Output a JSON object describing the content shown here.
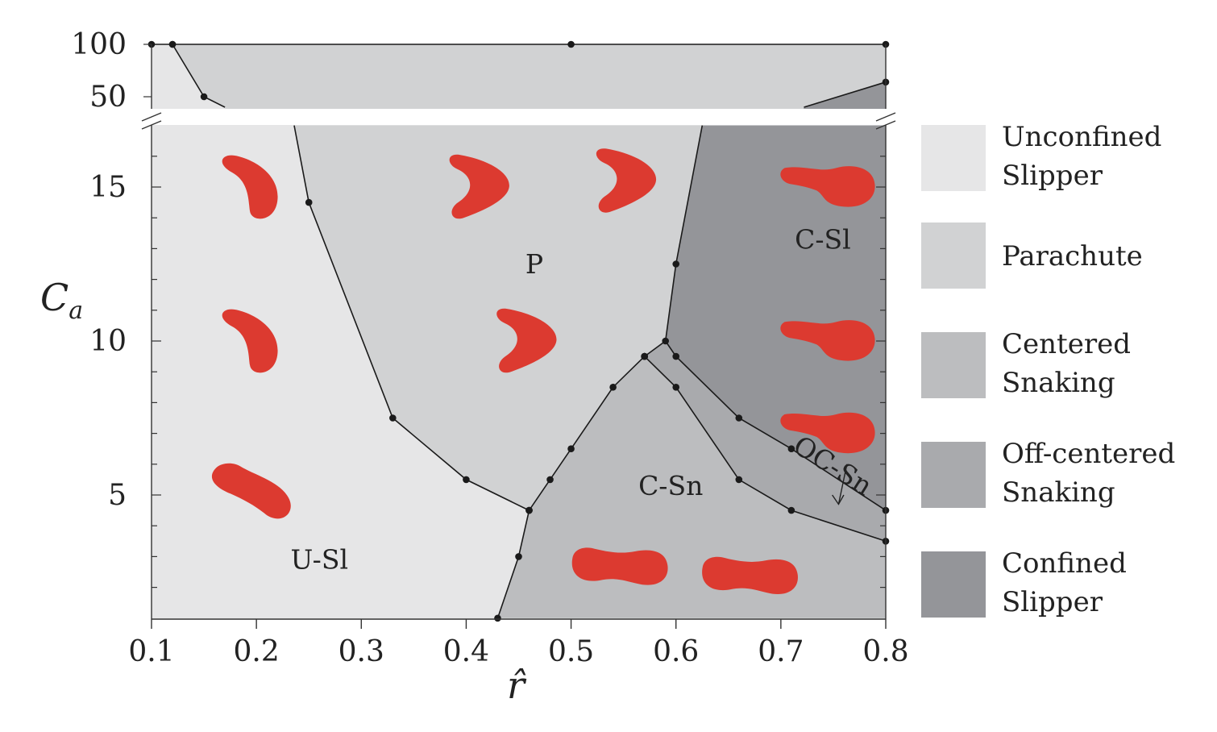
{
  "chart_data": {
    "type": "phase-diagram",
    "xlabel": "r̂",
    "ylabel": "C",
    "ylabel_subscript": "a",
    "xlim": [
      0.1,
      0.8
    ],
    "ylim_lower": [
      1,
      17
    ],
    "ylim_upper": [
      40,
      100
    ],
    "y_axis_broken": true,
    "x_ticks": [
      "0.1",
      "0.2",
      "0.3",
      "0.4",
      "0.5",
      "0.6",
      "0.7",
      "0.8"
    ],
    "y_ticks_lower": [
      "5",
      "10",
      "15"
    ],
    "y_ticks_upper": [
      "50",
      "100"
    ],
    "colors": {
      "U-Sl": "#e6e6e7",
      "P": "#d1d2d3",
      "C-Sn": "#bcbdbf",
      "OC-Sn": "#a9aaad",
      "C-Sl": "#949599",
      "cell": "#dc3a30",
      "line": "#1a1a1a"
    },
    "region_labels": [
      {
        "text": "U-Sl",
        "x": 0.26,
        "y": 2.6
      },
      {
        "text": "P",
        "x": 0.465,
        "y": 12.2
      },
      {
        "text": "C-Sn",
        "x": 0.595,
        "y": 5.0
      },
      {
        "text": "C-Sl",
        "x": 0.74,
        "y": 13.0
      },
      {
        "text": "OC-Sn",
        "x": 0.745,
        "y": 5.7,
        "rotate": 32
      }
    ],
    "legend": [
      {
        "lines": [
          "Unconfined",
          "Slipper"
        ],
        "region": "U-Sl"
      },
      {
        "lines": [
          "Parachute"
        ],
        "region": "P"
      },
      {
        "lines": [
          "Centered",
          "Snaking"
        ],
        "region": "C-Sn"
      },
      {
        "lines": [
          "Off-centered",
          "Snaking"
        ],
        "region": "OC-Sn"
      },
      {
        "lines": [
          "Confined",
          "Slipper"
        ],
        "region": "C-Sl"
      }
    ],
    "boundaries": {
      "U-Sl_P_lower": [
        [
          0.236,
          17
        ],
        [
          0.25,
          14.5
        ],
        [
          0.33,
          7.5
        ],
        [
          0.4,
          5.5
        ],
        [
          0.46,
          4.5
        ]
      ],
      "U-Sl_P_upper": [
        [
          0.12,
          100
        ],
        [
          0.15,
          50
        ],
        [
          0.17,
          40
        ]
      ],
      "U-Sl_C-Sn": [
        [
          0.43,
          1
        ],
        [
          0.45,
          3
        ],
        [
          0.46,
          4.5
        ]
      ],
      "P_C-Sn": [
        [
          0.46,
          4.5
        ],
        [
          0.48,
          5.5
        ],
        [
          0.5,
          6.5
        ],
        [
          0.54,
          8.5
        ],
        [
          0.57,
          9.5
        ]
      ],
      "P_C-Sl": [
        [
          0.59,
          10
        ],
        [
          0.6,
          12.5
        ],
        [
          0.625,
          17
        ]
      ],
      "OC-Sn_upper": [
        [
          0.57,
          9.5
        ],
        [
          0.59,
          10
        ],
        [
          0.6,
          9.5
        ],
        [
          0.66,
          7.5
        ],
        [
          0.71,
          6.5
        ],
        [
          0.8,
          4.5
        ]
      ],
      "OC-Sn_lower": [
        [
          0.57,
          9.5
        ],
        [
          0.6,
          8.5
        ],
        [
          0.66,
          5.5
        ],
        [
          0.71,
          4.5
        ],
        [
          0.8,
          3.5
        ]
      ],
      "P_C-Sl_upper": [
        [
          0.722,
          40
        ],
        [
          0.8,
          64
        ]
      ],
      "top_points": [
        [
          0.1,
          100
        ],
        [
          0.12,
          100
        ],
        [
          0.5,
          100
        ],
        [
          0.8,
          100
        ]
      ]
    },
    "cell_shapes": [
      {
        "shape": "crescent-left",
        "x": 0.2,
        "y": 15
      },
      {
        "shape": "crescent-left",
        "x": 0.2,
        "y": 10
      },
      {
        "shape": "elongated",
        "x": 0.2,
        "y": 5.2
      },
      {
        "shape": "parachute",
        "x": 0.415,
        "y": 15
      },
      {
        "shape": "parachute",
        "x": 0.46,
        "y": 10
      },
      {
        "shape": "parachute",
        "x": 0.555,
        "y": 15.2
      },
      {
        "shape": "slipper-right",
        "x": 0.745,
        "y": 15.2
      },
      {
        "shape": "slipper-right",
        "x": 0.745,
        "y": 10.2
      },
      {
        "shape": "slipper-right",
        "x": 0.745,
        "y": 7.2
      },
      {
        "shape": "snake",
        "x": 0.546,
        "y": 2.7
      },
      {
        "shape": "snake",
        "x": 0.67,
        "y": 2.4
      }
    ]
  }
}
